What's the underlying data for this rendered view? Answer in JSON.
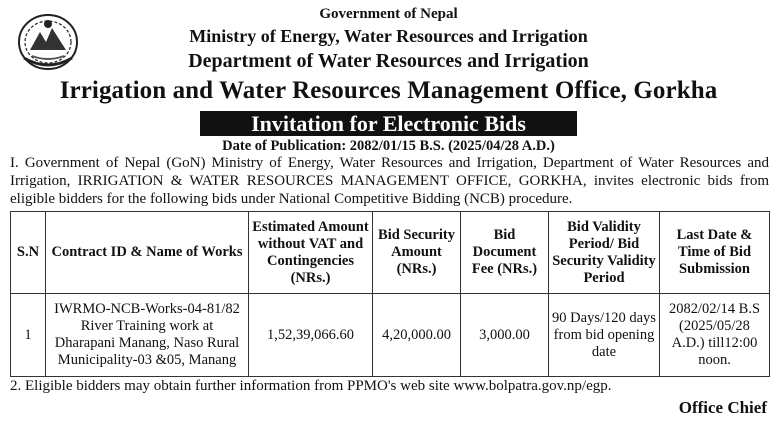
{
  "header": {
    "government": "Government of Nepal",
    "ministry": "Ministry of Energy, Water Resources and Irrigation",
    "department": "Department of Water Resources and Irrigation",
    "office": "Irrigation and Water Resources Management Office, Gorkha"
  },
  "banner": "Invitation for Electronic Bids",
  "publication_date": "Date of Publication: 2082/01/15 B.S. (2025/04/28 A.D.)",
  "paragraph_1": "I. Government of Nepal (GoN) Ministry of Energy, Water Resources and Irrigation, Department of Water Resources and Irrigation, IRRIGATION & WATER RESOURCES MANAGEMENT OFFICE, GORKHA, invites electronic bids from eligible bidders for the following bids under National Competitive Bidding (NCB) procedure.",
  "table": {
    "headers": [
      "S.N",
      "Contract ID & Name of Works",
      "Estimated Amount without VAT and Contingencies (NRs.)",
      "Bid Security Amount (NRs.)",
      "Bid Document Fee (NRs.)",
      "Bid Validity Period/ Bid Security Validity Period",
      "Last Date & Time of Bid Submission"
    ],
    "rows": [
      [
        "1",
        "IWRMO-NCB-Works-04-81/82 River Training work at Dharapani Manang, Naso Rural Municipality-03 &05, Manang",
        "1,52,39,066.60",
        "4,20,000.00",
        "3,000.00",
        "90 Days/120 days from bid opening date",
        "2082/02/14 B.S (2025/05/28 A.D.) till12:00 noon."
      ]
    ]
  },
  "note_2": "2. Eligible bidders may obtain further information from PPMO's web site www.bolpatra.gov.np/egp.",
  "signature": "Office Chief",
  "icons": {
    "emblem": "nepal-government-emblem-icon"
  }
}
